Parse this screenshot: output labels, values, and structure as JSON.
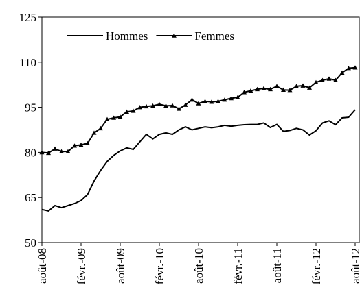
{
  "chart_data": {
    "type": "line",
    "categories": [
      "août-08",
      null,
      null,
      null,
      null,
      null,
      "févr.-09",
      null,
      null,
      null,
      null,
      null,
      "août-09",
      null,
      null,
      null,
      null,
      null,
      "févr.-10",
      null,
      null,
      null,
      null,
      null,
      "août-10",
      null,
      null,
      null,
      null,
      null,
      "févr.-11",
      null,
      null,
      null,
      null,
      null,
      "août-11",
      null,
      null,
      null,
      null,
      null,
      "févr.-12",
      null,
      null,
      null,
      null,
      null,
      "août-12"
    ],
    "series": [
      {
        "name": "Hommes",
        "color": "#000000",
        "marker": "none",
        "values": [
          61,
          60.5,
          62.3,
          61.6,
          62.3,
          63,
          64,
          66,
          70.5,
          74,
          77,
          79,
          80.5,
          81.5,
          81,
          83.5,
          86,
          84.5,
          86,
          86.5,
          86,
          87.5,
          88.5,
          87.5,
          88,
          88.5,
          88.2,
          88.5,
          89,
          88.7,
          89,
          89.2,
          89.3,
          89.3,
          89.8,
          88.3,
          89.3,
          87,
          87.3,
          88,
          87.5,
          85.8,
          87.2,
          89.8,
          90.5,
          89.2,
          91.5,
          91.7,
          94.2
        ]
      },
      {
        "name": "Femmes",
        "color": "#000000",
        "marker": "triangle",
        "values": [
          80,
          79.8,
          81.2,
          80.3,
          80.3,
          82.2,
          82.5,
          83,
          86.5,
          88,
          91,
          91.5,
          91.8,
          93.5,
          93.8,
          95,
          95.3,
          95.5,
          96,
          95.5,
          95.6,
          94.5,
          95.8,
          97.5,
          96.3,
          97,
          96.8,
          97,
          97.5,
          98,
          98.3,
          100,
          100.5,
          101,
          101.3,
          101,
          102,
          100.8,
          100.7,
          102,
          102.2,
          101.5,
          103.3,
          104,
          104.5,
          104,
          106.5,
          108,
          108.2
        ]
      }
    ],
    "ylim": [
      50,
      125
    ],
    "yticks": [
      50,
      65,
      80,
      95,
      110,
      125
    ],
    "grid": false,
    "legend": "top"
  }
}
